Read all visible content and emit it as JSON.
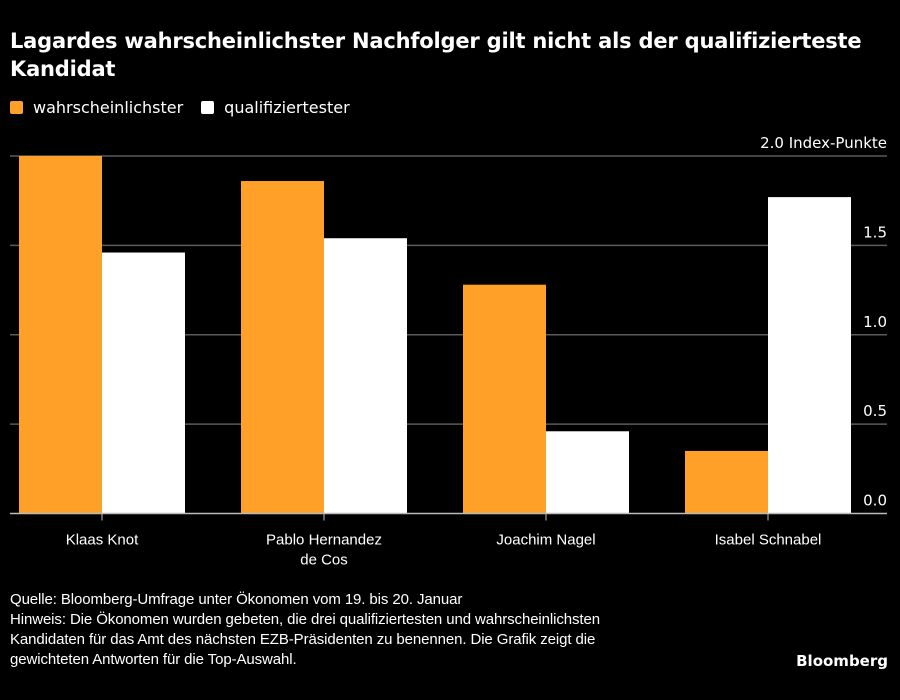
{
  "header": {
    "title": "Lagardes wahrscheinlichster Nachfolger gilt nicht als der qualifizierteste Kandidat"
  },
  "legend": [
    {
      "label": "wahrscheinlichster",
      "color": "#FFA028"
    },
    {
      "label": "qualifiziertester",
      "color": "#FFFFFF"
    }
  ],
  "chart_data": {
    "type": "bar",
    "title": "Lagardes wahrscheinlichster Nachfolger gilt nicht als der qualifizierteste Kandidat",
    "xlabel": "",
    "ylabel": "Index-Punkte",
    "categories": [
      [
        "Klaas Knot"
      ],
      [
        "Pablo Hernandez",
        "de Cos"
      ],
      [
        "Joachim Nagel"
      ],
      [
        "Isabel Schnabel"
      ]
    ],
    "series": [
      {
        "name": "wahrscheinlichster",
        "color": "#FFA028",
        "values": [
          2.0,
          1.86,
          1.28,
          0.35
        ]
      },
      {
        "name": "qualifiziertester",
        "color": "#FFFFFF",
        "values": [
          1.46,
          1.54,
          0.46,
          1.77
        ]
      }
    ],
    "ylim": [
      0,
      2.0
    ],
    "yticks": [
      0.0,
      0.5,
      1.0,
      1.5,
      2.0
    ],
    "ytick_labels": [
      "0.0",
      "0.5",
      "1.0",
      "1.5",
      "2.0 Index-Punkte"
    ],
    "grid": true,
    "legend_position": "top-left",
    "y_axis_side": "right"
  },
  "footer": {
    "source": "Quelle: Bloomberg-Umfrage unter Ökonomen vom 19. bis 20. Januar",
    "note_lines": [
      "Hinweis: Die Ökonomen wurden gebeten, die drei qualifiziertesten und wahrscheinlichsten",
      "Kandidaten für das Amt des nächsten EZB-Präsidenten zu benennen. Die Grafik zeigt die",
      "gewichteten Antworten für die Top-Auswahl."
    ],
    "brand": "Bloomberg"
  }
}
